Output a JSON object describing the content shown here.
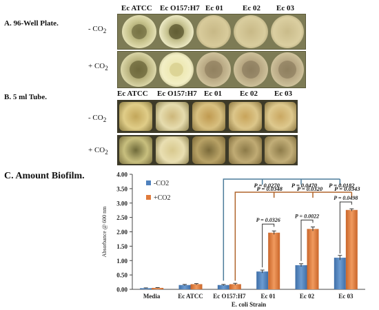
{
  "figure": {
    "strain_headers": [
      "Ec ATCC",
      "Ec O157:H7",
      "Ec  01",
      "Ec 02",
      "Ec 03"
    ],
    "panel_a": {
      "title": "A. 96-Well Plate.",
      "rows": [
        {
          "label": "- CO",
          "sub": "2"
        },
        {
          "label": "+ CO",
          "sub": "2"
        }
      ]
    },
    "panel_b": {
      "title": "B. 5 ml Tube.",
      "rows": [
        {
          "label": "- CO",
          "sub": "2"
        },
        {
          "label": "+ CO",
          "sub": "2"
        }
      ]
    },
    "panel_c": {
      "title": "C. Amount Biofilm."
    }
  },
  "colors": {
    "co2_minus": "#4f81bd",
    "co2_plus": "#e07b3c",
    "bracket_blue": "#4a7a9a",
    "bracket_orange": "#b0642a"
  },
  "chart_data": {
    "type": "bar",
    "categories": [
      "Media",
      "Ec ATCC",
      "Ec O157:H7",
      "Ec 01",
      "Ec 02",
      "Ec 03"
    ],
    "series": [
      {
        "name": "-CO2",
        "values": [
          0.04,
          0.15,
          0.15,
          0.62,
          0.84,
          1.1
        ],
        "errors": [
          0.01,
          0.02,
          0.02,
          0.05,
          0.05,
          0.08
        ]
      },
      {
        "name": "+CO2",
        "values": [
          0.05,
          0.18,
          0.18,
          1.97,
          2.1,
          2.76
        ],
        "errors": [
          0.01,
          0.02,
          0.03,
          0.06,
          0.07,
          0.04
        ]
      }
    ],
    "xlabel": "E. coli Strain",
    "ylabel": "Absorbance @ 600 nm",
    "ylim": [
      0,
      4
    ],
    "yticks": [
      "0.00",
      "0.50",
      "1.00",
      "1.50",
      "2.00",
      "2.50",
      "3.00",
      "3.50",
      "4.00"
    ],
    "grid": false,
    "legend_position": "top-left",
    "annotations": {
      "pair_pvalues": [
        "P = 0.0326",
        "P = 0.0022",
        "P = 0.0498"
      ],
      "blue_bracket_pvalues": [
        "P = 0.0270",
        "P = 0.0470",
        "P = 0.0182"
      ],
      "orange_bracket_pvalues": [
        "P = 0.0348",
        "P = 0.0320",
        "P = 0.0343"
      ]
    }
  }
}
